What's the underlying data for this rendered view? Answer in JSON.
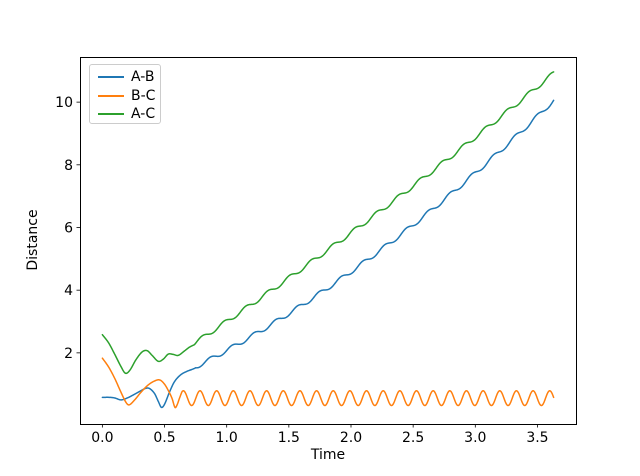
{
  "chart_data": {
    "type": "line",
    "title": "",
    "xlabel": "Time",
    "ylabel": "Distance",
    "grid": false,
    "legend": {
      "position": "upper left",
      "entries": [
        "A-B",
        "B-C",
        "A-C"
      ]
    },
    "xlim": [
      -0.18,
      3.81
    ],
    "ylim": [
      -0.27,
      11.44
    ],
    "x_ticks": [
      0.0,
      0.5,
      1.0,
      1.5,
      2.0,
      2.5,
      3.0,
      3.5
    ],
    "x_tick_labels": [
      "0.0",
      "0.5",
      "1.0",
      "1.5",
      "2.0",
      "2.5",
      "3.0",
      "3.5"
    ],
    "y_ticks": [
      2,
      4,
      6,
      8,
      10
    ],
    "y_tick_labels": [
      "2",
      "4",
      "6",
      "8",
      "10"
    ],
    "t_range": [
      0,
      3.63
    ],
    "sample_step": 0.003,
    "axis_color": "#000000",
    "series": [
      {
        "name": "A-B",
        "color": "#1f77b4",
        "anchors": [
          [
            0.0,
            0.58
          ],
          [
            0.06,
            0.58
          ],
          [
            0.1,
            0.56
          ],
          [
            0.15,
            0.5
          ],
          [
            0.2,
            0.56
          ],
          [
            0.25,
            0.66
          ],
          [
            0.3,
            0.77
          ],
          [
            0.35,
            0.87
          ],
          [
            0.38,
            0.86
          ],
          [
            0.42,
            0.7
          ],
          [
            0.45,
            0.45
          ],
          [
            0.475,
            0.26
          ],
          [
            0.5,
            0.36
          ],
          [
            0.54,
            0.75
          ],
          [
            0.58,
            1.08
          ],
          [
            0.63,
            1.3
          ],
          [
            0.68,
            1.41
          ],
          [
            0.72,
            1.47
          ],
          [
            0.75,
            1.52
          ]
        ],
        "model": {
          "type": "trend+sin",
          "start": 0.75,
          "u0": 0.7,
          "base": 1.45,
          "b": 2.0,
          "c": 0.319,
          "amp": 0.07,
          "omega": 35.9,
          "phase": 1.75
        },
        "key_points": {
          "start_value": 0.58,
          "min": [
            0.475,
            0.26
          ],
          "end": [
            3.63,
            10.05
          ]
        }
      },
      {
        "name": "B-C",
        "color": "#ff7f0e",
        "anchors": [
          [
            0.0,
            1.83
          ],
          [
            0.05,
            1.55
          ],
          [
            0.1,
            1.18
          ],
          [
            0.15,
            0.74
          ],
          [
            0.19,
            0.42
          ],
          [
            0.215,
            0.34
          ],
          [
            0.26,
            0.5
          ],
          [
            0.31,
            0.74
          ],
          [
            0.37,
            0.98
          ],
          [
            0.43,
            1.12
          ],
          [
            0.465,
            1.13
          ],
          [
            0.5,
            1.0
          ],
          [
            0.53,
            0.8
          ],
          [
            0.56,
            0.55
          ],
          [
            0.584,
            0.26
          ],
          [
            0.6,
            0.33
          ],
          [
            0.62,
            0.55
          ],
          [
            0.64,
            0.758
          ]
        ],
        "model": {
          "type": "osc",
          "start": 0.64,
          "center": 0.555,
          "amp": 0.235,
          "omega": 46.9,
          "phase": 2.44
        },
        "key_points": {
          "start_value": 1.83,
          "min": [
            0.584,
            0.26
          ],
          "steady_range": [
            0.32,
            0.79
          ],
          "period": 0.134
        }
      },
      {
        "name": "A-C",
        "color": "#2ca02c",
        "anchors": [
          [
            0.0,
            2.58
          ],
          [
            0.05,
            2.32
          ],
          [
            0.1,
            1.95
          ],
          [
            0.15,
            1.56
          ],
          [
            0.185,
            1.35
          ],
          [
            0.22,
            1.44
          ],
          [
            0.27,
            1.78
          ],
          [
            0.32,
            2.03
          ],
          [
            0.36,
            2.07
          ],
          [
            0.4,
            1.92
          ],
          [
            0.45,
            1.73
          ],
          [
            0.49,
            1.8
          ],
          [
            0.53,
            1.96
          ],
          [
            0.57,
            1.95
          ],
          [
            0.61,
            1.92
          ],
          [
            0.66,
            2.06
          ],
          [
            0.7,
            2.18
          ],
          [
            0.74,
            2.26
          ]
        ],
        "model": {
          "type": "trend+sin",
          "start": 0.74,
          "u0": 0.7,
          "base": 2.2,
          "b": 2.645,
          "c": 0.113,
          "amp": 0.07,
          "omega": 35.9,
          "phase": 4.11
        },
        "key_points": {
          "start_value": 2.58,
          "min": [
            0.185,
            1.35
          ],
          "end": [
            3.63,
            10.92
          ]
        }
      }
    ]
  }
}
